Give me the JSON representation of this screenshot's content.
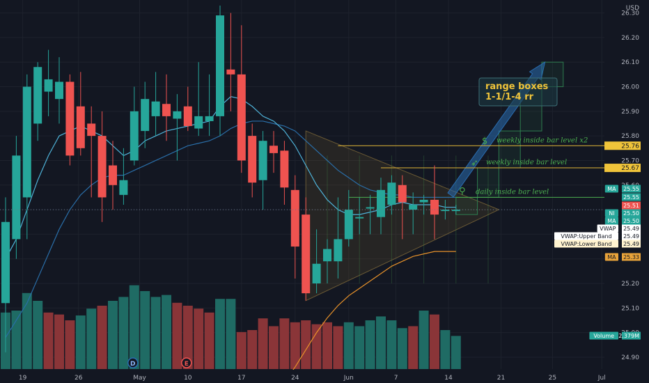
{
  "currency": "USD",
  "colors": {
    "background": "#131722",
    "up": "#26a69a",
    "down": "#ef5350",
    "volume_up": "#1f6b64",
    "volume_down": "#8a3538",
    "ma": "#2a8fbd",
    "ma_slow": "#e8922a",
    "yellow_line": "#e0b537",
    "label_green": "#4caf50",
    "triangle": "#6b5a35",
    "box": "#2e7d4f",
    "arrow": "#2a6db0",
    "text": "#b2b5be"
  },
  "chart_data": {
    "type": "candlestick",
    "x_tick_labels": [
      "19",
      "26",
      "May",
      "10",
      "17",
      "24",
      "Jun",
      "7",
      "14",
      "21",
      "25",
      "Jul"
    ],
    "y_ticks": [
      "24.90",
      "25.00",
      "25.10",
      "25.20",
      "25.30",
      "25.40",
      "25.50",
      "25.60",
      "25.70",
      "25.80",
      "25.90",
      "26.00",
      "26.10",
      "26.20",
      "26.30"
    ],
    "ylim": [
      24.88,
      26.33
    ],
    "candles": [
      {
        "o": 25.12,
        "h": 25.55,
        "l": 24.92,
        "c": 25.45
      },
      {
        "o": 25.38,
        "h": 25.8,
        "l": 25.3,
        "c": 25.72
      },
      {
        "o": 25.55,
        "h": 26.05,
        "l": 25.38,
        "c": 26.0
      },
      {
        "o": 25.85,
        "h": 26.1,
        "l": 25.78,
        "c": 26.08
      },
      {
        "o": 25.98,
        "h": 26.15,
        "l": 25.88,
        "c": 26.03
      },
      {
        "o": 25.95,
        "h": 26.12,
        "l": 25.85,
        "c": 26.02
      },
      {
        "o": 26.02,
        "h": 26.05,
        "l": 25.68,
        "c": 25.72
      },
      {
        "o": 25.92,
        "h": 26.06,
        "l": 25.72,
        "c": 25.75
      },
      {
        "o": 25.85,
        "h": 25.92,
        "l": 25.55,
        "c": 25.8
      },
      {
        "o": 25.8,
        "h": 25.9,
        "l": 25.45,
        "c": 25.55
      },
      {
        "o": 25.68,
        "h": 25.78,
        "l": 25.5,
        "c": 25.6
      },
      {
        "o": 25.56,
        "h": 25.75,
        "l": 25.52,
        "c": 25.62
      },
      {
        "o": 25.7,
        "h": 26.0,
        "l": 25.68,
        "c": 25.9
      },
      {
        "o": 25.82,
        "h": 26.02,
        "l": 25.75,
        "c": 25.95
      },
      {
        "o": 25.88,
        "h": 26.06,
        "l": 25.8,
        "c": 25.94
      },
      {
        "o": 25.93,
        "h": 26.05,
        "l": 25.78,
        "c": 25.88
      },
      {
        "o": 25.87,
        "h": 25.97,
        "l": 25.7,
        "c": 25.9
      },
      {
        "o": 25.92,
        "h": 26.0,
        "l": 25.82,
        "c": 25.84
      },
      {
        "o": 25.83,
        "h": 26.1,
        "l": 25.8,
        "c": 25.88
      },
      {
        "o": 25.86,
        "h": 26.05,
        "l": 25.8,
        "c": 25.88
      },
      {
        "o": 25.88,
        "h": 26.33,
        "l": 25.8,
        "c": 26.29
      },
      {
        "o": 26.07,
        "h": 26.3,
        "l": 25.9,
        "c": 26.05
      },
      {
        "o": 26.05,
        "h": 26.25,
        "l": 25.65,
        "c": 25.7
      },
      {
        "o": 25.8,
        "h": 25.85,
        "l": 25.55,
        "c": 25.61
      },
      {
        "o": 25.62,
        "h": 25.82,
        "l": 25.5,
        "c": 25.78
      },
      {
        "o": 25.76,
        "h": 25.82,
        "l": 25.65,
        "c": 25.73
      },
      {
        "o": 25.74,
        "h": 25.78,
        "l": 25.52,
        "c": 25.59
      },
      {
        "o": 25.58,
        "h": 25.64,
        "l": 25.22,
        "c": 25.35
      },
      {
        "o": 25.48,
        "h": 25.55,
        "l": 25.13,
        "c": 25.16
      },
      {
        "o": 25.2,
        "h": 25.42,
        "l": 25.16,
        "c": 25.28
      },
      {
        "o": 25.29,
        "h": 25.38,
        "l": 25.2,
        "c": 25.34
      },
      {
        "o": 25.29,
        "h": 25.55,
        "l": 25.22,
        "c": 25.38
      },
      {
        "o": 25.38,
        "h": 25.58,
        "l": 25.35,
        "c": 25.5
      },
      {
        "o": 25.47,
        "h": 25.55,
        "l": 25.4,
        "c": 25.47
      },
      {
        "o": 25.51,
        "h": 25.56,
        "l": 25.4,
        "c": 25.51
      },
      {
        "o": 25.47,
        "h": 25.63,
        "l": 25.4,
        "c": 25.58
      },
      {
        "o": 25.52,
        "h": 25.64,
        "l": 25.48,
        "c": 25.61
      },
      {
        "o": 25.6,
        "h": 25.64,
        "l": 25.38,
        "c": 25.53
      },
      {
        "o": 25.5,
        "h": 25.57,
        "l": 25.4,
        "c": 25.52
      },
      {
        "o": 25.53,
        "h": 25.56,
        "l": 25.48,
        "c": 25.54
      },
      {
        "o": 25.54,
        "h": 25.68,
        "l": 25.38,
        "c": 25.48
      },
      {
        "o": 25.5,
        "h": 25.54,
        "l": 25.46,
        "c": 25.5
      },
      {
        "o": 25.5,
        "h": 25.52,
        "l": 25.48,
        "c": 25.5
      }
    ],
    "volume": [
      {
        "v": 0.58,
        "up": true
      },
      {
        "v": 0.6,
        "up": true
      },
      {
        "v": 0.78,
        "up": true
      },
      {
        "v": 0.7,
        "up": true
      },
      {
        "v": 0.58,
        "up": false
      },
      {
        "v": 0.56,
        "up": false
      },
      {
        "v": 0.5,
        "up": false
      },
      {
        "v": 0.55,
        "up": true
      },
      {
        "v": 0.62,
        "up": true
      },
      {
        "v": 0.65,
        "up": false
      },
      {
        "v": 0.7,
        "up": true
      },
      {
        "v": 0.74,
        "up": true
      },
      {
        "v": 0.86,
        "up": true
      },
      {
        "v": 0.8,
        "up": true
      },
      {
        "v": 0.74,
        "up": true
      },
      {
        "v": 0.76,
        "up": true
      },
      {
        "v": 0.68,
        "up": false
      },
      {
        "v": 0.65,
        "up": false
      },
      {
        "v": 0.62,
        "up": false
      },
      {
        "v": 0.58,
        "up": false
      },
      {
        "v": 0.72,
        "up": true
      },
      {
        "v": 0.72,
        "up": true
      },
      {
        "v": 0.38,
        "up": false
      },
      {
        "v": 0.4,
        "up": false
      },
      {
        "v": 0.52,
        "up": false
      },
      {
        "v": 0.44,
        "up": false
      },
      {
        "v": 0.52,
        "up": false
      },
      {
        "v": 0.48,
        "up": false
      },
      {
        "v": 0.5,
        "up": false
      },
      {
        "v": 0.46,
        "up": false
      },
      {
        "v": 0.48,
        "up": false
      },
      {
        "v": 0.44,
        "up": false
      },
      {
        "v": 0.48,
        "up": true
      },
      {
        "v": 0.44,
        "up": true
      },
      {
        "v": 0.5,
        "up": true
      },
      {
        "v": 0.54,
        "up": true
      },
      {
        "v": 0.5,
        "up": true
      },
      {
        "v": 0.42,
        "up": true
      },
      {
        "v": 0.44,
        "up": false
      },
      {
        "v": 0.6,
        "up": true
      },
      {
        "v": 0.56,
        "up": false
      },
      {
        "v": 0.4,
        "up": true
      },
      {
        "v": 0.34,
        "up": true
      }
    ],
    "ma_fast": [
      25.3,
      25.38,
      25.5,
      25.62,
      25.72,
      25.8,
      25.82,
      25.84,
      25.82,
      25.8,
      25.76,
      25.72,
      25.74,
      25.78,
      25.8,
      25.82,
      25.83,
      25.84,
      25.85,
      25.86,
      25.92,
      25.96,
      25.95,
      25.92,
      25.88,
      25.86,
      25.82,
      25.76,
      25.68,
      25.6,
      25.54,
      25.5,
      25.48,
      25.48,
      25.49,
      25.5,
      25.52,
      25.53,
      25.52,
      25.52,
      25.52,
      25.51,
      25.51
    ],
    "ma_mid": [
      24.98,
      25.05,
      25.12,
      25.22,
      25.32,
      25.42,
      25.5,
      25.56,
      25.6,
      25.63,
      25.64,
      25.64,
      25.66,
      25.68,
      25.7,
      25.72,
      25.74,
      25.76,
      25.77,
      25.78,
      25.8,
      25.83,
      25.85,
      25.86,
      25.86,
      25.85,
      25.84,
      25.82,
      25.78,
      25.74,
      25.7,
      25.66,
      25.63,
      25.6,
      25.58,
      25.57,
      25.56,
      25.56,
      25.55,
      25.55,
      25.55,
      25.55,
      25.55
    ],
    "ma_slow_from_index": 26,
    "ma_slow": [
      24.8,
      24.86,
      24.93,
      25.0,
      25.06,
      25.11,
      25.15,
      25.18,
      25.21,
      25.24,
      25.27,
      25.29,
      25.31,
      25.32,
      25.33,
      25.33,
      25.33
    ],
    "horizontal_levels": [
      {
        "price": 25.76,
        "label": "weekly inside bar level x2",
        "start_index": 31
      },
      {
        "price": 25.67,
        "label": "weekly inside bar level",
        "start_index": 35
      },
      {
        "price": 25.55,
        "label": "daily inside bar level",
        "start_index": 32
      }
    ],
    "triangle": {
      "start_index": 28,
      "apex_index": 46,
      "top": 25.82,
      "bottom": 25.13,
      "apex": 25.5
    },
    "projection_boxes": [
      {
        "from_index": 42,
        "to_index": 44,
        "low": 25.48,
        "high": 25.55
      },
      {
        "from_index": 44,
        "to_index": 46,
        "low": 25.55,
        "high": 25.67
      },
      {
        "from_index": 46,
        "to_index": 48,
        "low": 25.67,
        "high": 25.82
      },
      {
        "from_index": 48,
        "to_index": 50,
        "low": 25.82,
        "high": 26.0
      },
      {
        "from_index": 50,
        "to_index": 52,
        "low": 26.0,
        "high": 26.1
      }
    ],
    "annotation": {
      "line1": "range boxes",
      "line2": "1-1/1-4 rr"
    },
    "price_tags": [
      {
        "label": "MA",
        "value": "25.55",
        "bg": "#26a69a",
        "fg": "#ffffff",
        "price": 25.55,
        "row": 0
      },
      {
        "label": "",
        "value": "25.55",
        "bg": "#26a69a",
        "fg": "#ffffff",
        "price": 25.55,
        "row": 1
      },
      {
        "label": "",
        "value": "25.51",
        "bg": "#ef5350",
        "fg": "#ffffff",
        "price": 25.51,
        "row": 2
      },
      {
        "label": "NI",
        "value": "25.50",
        "bg": "#26a69a",
        "fg": "#ffffff",
        "price": 25.5,
        "row": 3
      },
      {
        "label": "MA",
        "value": "25.50",
        "bg": "#26a69a",
        "fg": "#ffffff",
        "price": 25.5,
        "row": 4
      },
      {
        "label": "VWAP",
        "value": "25.49",
        "bg": "#ffffff",
        "fg": "#131722",
        "price": 25.49,
        "row": 5
      },
      {
        "label": "VWAP:Upper Band",
        "value": "25.49",
        "bg": "#ffffff",
        "fg": "#131722",
        "price": 25.49,
        "row": 6
      },
      {
        "label": "VWAP:Lower Band",
        "value": "25.49",
        "bg": "#fff3cf",
        "fg": "#131722",
        "price": 25.49,
        "row": 7
      },
      {
        "label": "MA",
        "value": "25.33",
        "bg": "#e8a33a",
        "fg": "#131722",
        "price": 25.33,
        "row": 8
      },
      {
        "label": "Volume",
        "value": "2.379M",
        "bg": "#26a69a",
        "fg": "#ffffff",
        "price": 24.99,
        "row": 9
      }
    ],
    "level_tags": [
      {
        "value": "25.76",
        "price": 25.76
      },
      {
        "value": "25.67",
        "price": 25.67
      }
    ],
    "event_markers": [
      {
        "label": "D",
        "index": 12
      },
      {
        "label": "E",
        "index": 17
      }
    ]
  }
}
